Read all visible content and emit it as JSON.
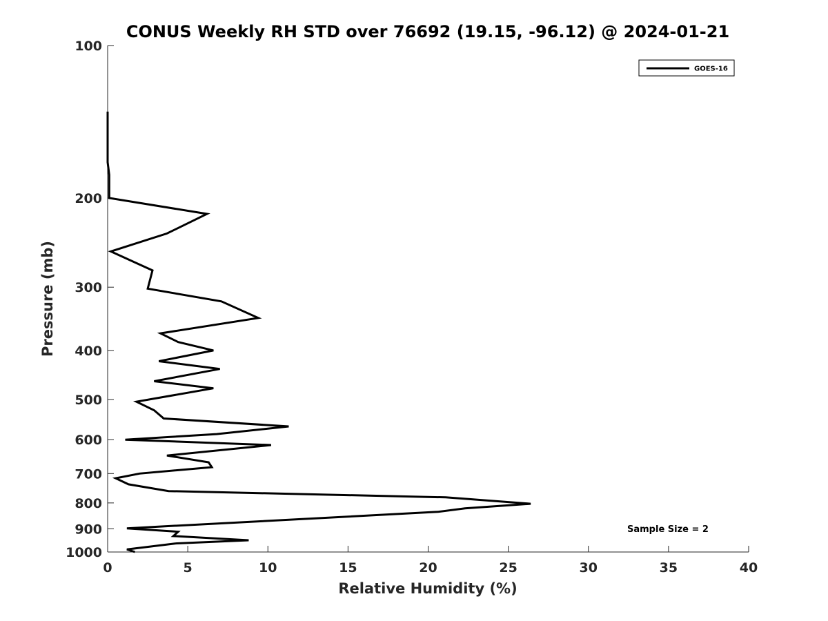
{
  "chart_data": {
    "type": "line",
    "title": "CONUS Weekly RH STD over 76692 (19.15, -96.12) @ 2024-01-21",
    "xlabel": "Relative Humidity (%)",
    "ylabel": "Pressure (mb)",
    "xlim": [
      0,
      40
    ],
    "ylim": [
      1000,
      100
    ],
    "yscale": "log",
    "xticks": [
      0,
      5,
      10,
      15,
      20,
      25,
      30,
      35,
      40
    ],
    "xtick_labels": [
      "0",
      "5",
      "10",
      "15",
      "20",
      "25",
      "30",
      "35",
      "40"
    ],
    "yticks": [
      100,
      200,
      300,
      400,
      500,
      600,
      700,
      800,
      900,
      1000
    ],
    "ytick_labels": [
      "100",
      "200",
      "300",
      "400",
      "500",
      "600",
      "700",
      "800",
      "900",
      "1000"
    ],
    "grid": false,
    "legend": {
      "position": "top-right",
      "entries": [
        "GOES-16"
      ]
    },
    "annotation": "Sample Size = 2",
    "series": [
      {
        "name": "GOES-16",
        "color": "#000000",
        "points": [
          [
            0.0,
            135
          ],
          [
            0.0,
            170
          ],
          [
            0.1,
            180
          ],
          [
            0.1,
            200
          ],
          [
            6.2,
            215
          ],
          [
            3.7,
            235
          ],
          [
            0.2,
            255
          ],
          [
            2.8,
            278
          ],
          [
            2.5,
            302
          ],
          [
            7.1,
            320
          ],
          [
            9.4,
            345
          ],
          [
            3.3,
            370
          ],
          [
            4.4,
            385
          ],
          [
            6.6,
            400
          ],
          [
            3.2,
            420
          ],
          [
            7.0,
            435
          ],
          [
            2.9,
            460
          ],
          [
            6.6,
            475
          ],
          [
            1.8,
            505
          ],
          [
            2.9,
            525
          ],
          [
            3.5,
            545
          ],
          [
            11.3,
            565
          ],
          [
            6.8,
            585
          ],
          [
            1.1,
            600
          ],
          [
            10.2,
            615
          ],
          [
            3.7,
            645
          ],
          [
            6.3,
            665
          ],
          [
            6.5,
            680
          ],
          [
            2.0,
            700
          ],
          [
            0.5,
            715
          ],
          [
            1.3,
            735
          ],
          [
            3.8,
            758
          ],
          [
            21.1,
            780
          ],
          [
            26.4,
            803
          ],
          [
            22.3,
            820
          ],
          [
            20.6,
            833
          ],
          [
            1.2,
            898
          ],
          [
            4.4,
            912
          ],
          [
            4.1,
            930
          ],
          [
            8.8,
            948
          ],
          [
            4.2,
            962
          ],
          [
            1.2,
            988
          ],
          [
            1.7,
            1000
          ]
        ]
      }
    ]
  }
}
